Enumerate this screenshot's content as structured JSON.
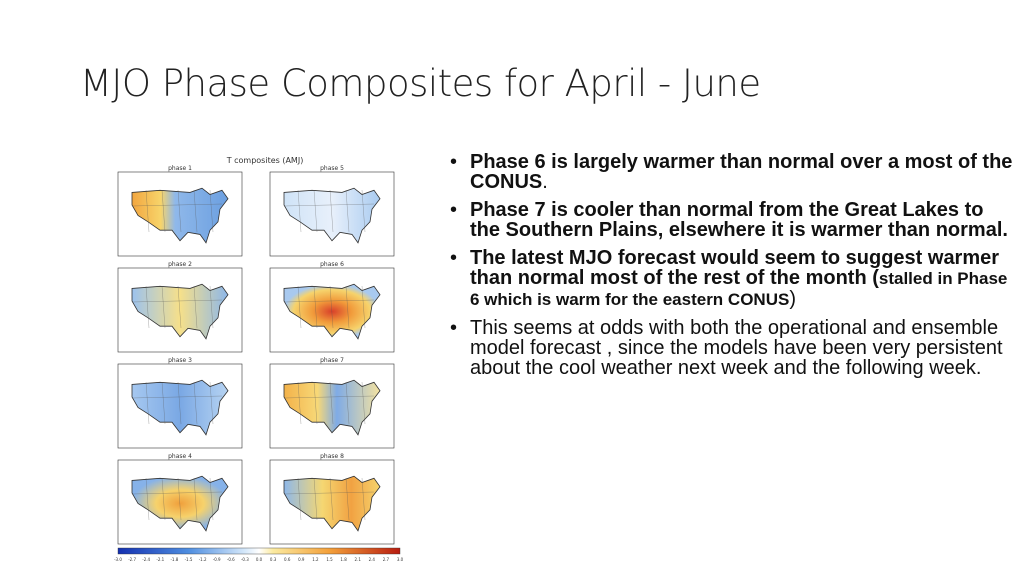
{
  "title": "MJO Phase Composites for April -  June",
  "figure": {
    "title": "T composites (AMJ)",
    "panels": [
      "phase 1",
      "phase 5",
      "phase 2",
      "phase 6",
      "phase 3",
      "phase 7",
      "phase 4",
      "phase 8"
    ],
    "colorbar_labels": [
      "-3.0",
      "-2.7",
      "-2.4",
      "-2.1",
      "-1.8",
      "-1.5",
      "-1.2",
      "-0.9",
      "-0.6",
      "-0.3",
      "0.0",
      "0.3",
      "0.6",
      "0.9",
      "1.2",
      "1.5",
      "1.8",
      "2.1",
      "2.4",
      "2.7",
      "3.0"
    ]
  },
  "bullets": [
    {
      "segments": [
        {
          "text": "Phase 6 is largely warmer than normal over a most of the CONUS",
          "style": "bold"
        },
        {
          "text": ".",
          "style": "normal"
        }
      ]
    },
    {
      "segments": [
        {
          "text": "Phase 7 is cooler than normal from the Great Lakes to the Southern Plains, elsewhere it is warmer than normal.",
          "style": "bold"
        }
      ]
    },
    {
      "segments": [
        {
          "text": "The latest MJO forecast would seem to suggest warmer than normal most of the rest of the month (",
          "style": "bold"
        },
        {
          "text": "stalled in Phase 6 which is warm for the eastern CONUS",
          "style": "small-bold"
        },
        {
          "text": ")",
          "style": "normal"
        }
      ]
    },
    {
      "segments": [
        {
          "text": "This seems at odds with both the operational and ensemble model forecast , since the models have been very persistent about the cool weather next week and the following week.",
          "style": "normal"
        }
      ]
    }
  ]
}
